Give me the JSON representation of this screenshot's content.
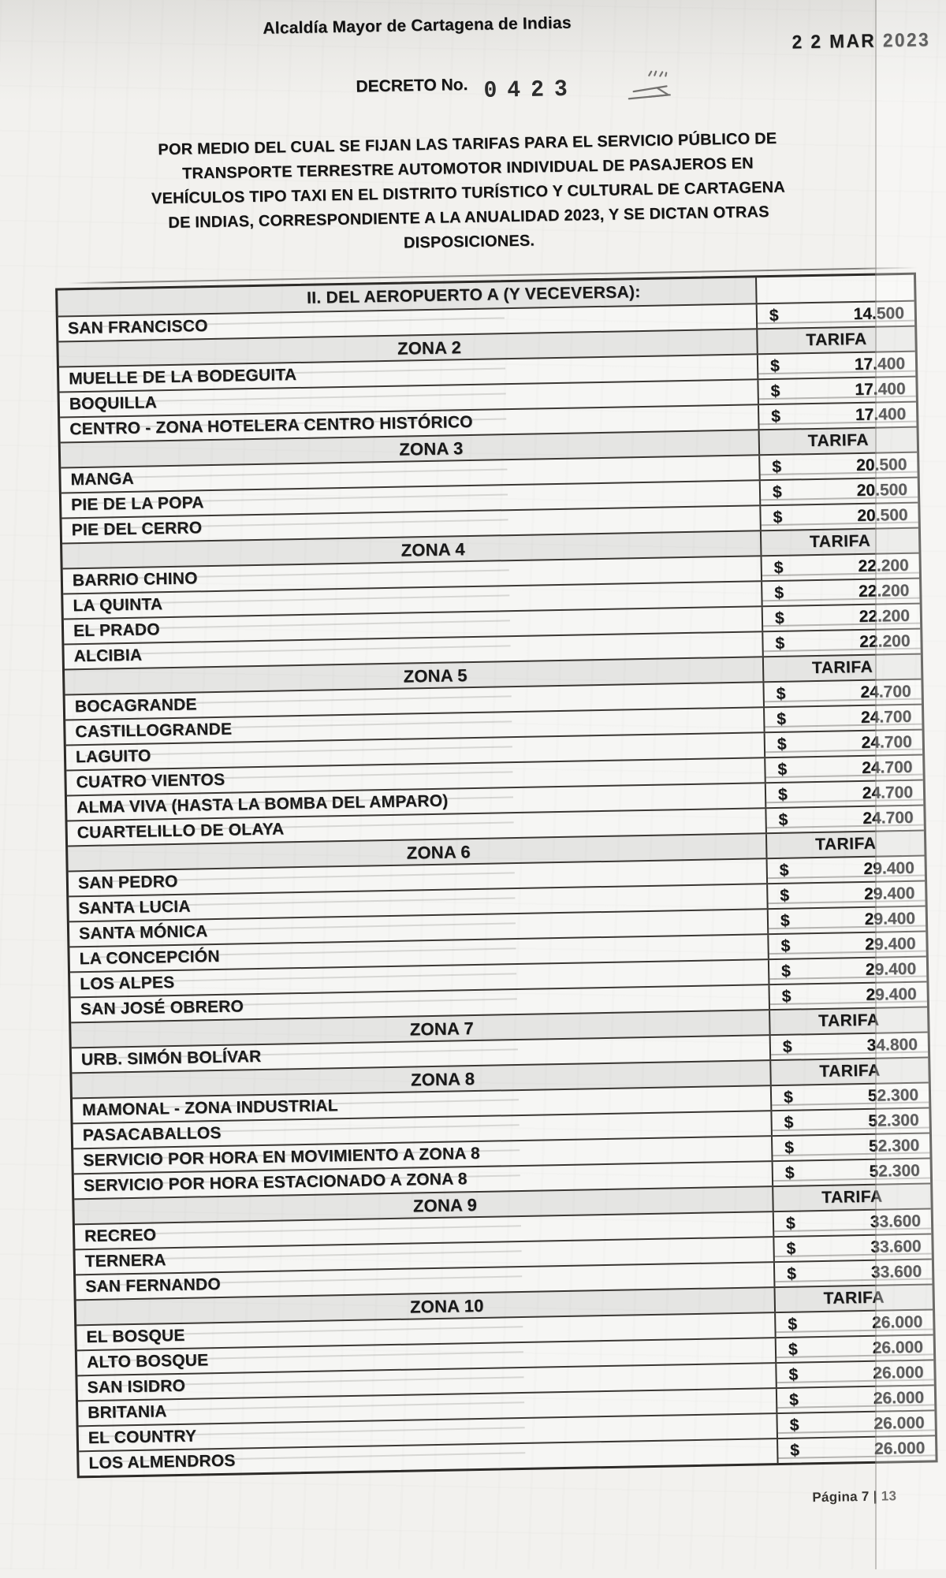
{
  "page": {
    "org_name": "Alcaldía Mayor de Cartagena de Indias",
    "date_stamp": "2 2 MAR 2023",
    "decree_label": "DECRETO No.",
    "decree_number": "0423",
    "title_lines": [
      "POR MEDIO DEL CUAL SE FIJAN LAS TARIFAS PARA EL SERVICIO PÚBLICO DE",
      "TRANSPORTE TERRESTRE AUTOMOTOR INDIVIDUAL DE PASAJEROS EN",
      "VEHÍCULOS TIPO TAXI EN EL DISTRITO TURÍSTICO Y CULTURAL DE CARTAGENA",
      "DE INDIAS, CORRESPONDIENTE A LA ANUALIDAD 2023, Y SE DICTAN OTRAS",
      "DISPOSICIONES."
    ],
    "footer": "Página 7 | 13"
  },
  "table": {
    "section_header": "II. DEL AEROPUERTO A (Y VECEVERSA):",
    "tariff_header": "TARIFA",
    "currency": "$",
    "rows": [
      {
        "t": "header",
        "label": "II. DEL AEROPUERTO A (Y VECEVERSA):"
      },
      {
        "t": "dest",
        "label": "SAN FRANCISCO",
        "fare": "14.500"
      },
      {
        "t": "zone",
        "label": "ZONA 2"
      },
      {
        "t": "dest",
        "label": "MUELLE DE LA BODEGUITA",
        "fare": "17.400"
      },
      {
        "t": "dest",
        "label": "BOQUILLA",
        "fare": "17.400"
      },
      {
        "t": "dest",
        "label": "CENTRO - ZONA HOTELERA CENTRO HISTÓRICO",
        "fare": "17.400"
      },
      {
        "t": "zone",
        "label": "ZONA 3"
      },
      {
        "t": "dest",
        "label": "MANGA",
        "fare": "20.500"
      },
      {
        "t": "dest",
        "label": "PIE DE LA POPA",
        "fare": "20.500"
      },
      {
        "t": "dest",
        "label": "PIE DEL CERRO",
        "fare": "20.500"
      },
      {
        "t": "zone",
        "label": "ZONA 4"
      },
      {
        "t": "dest",
        "label": "BARRIO CHINO",
        "fare": "22.200"
      },
      {
        "t": "dest",
        "label": "LA QUINTA",
        "fare": "22.200"
      },
      {
        "t": "dest",
        "label": "EL PRADO",
        "fare": "22.200"
      },
      {
        "t": "dest",
        "label": "ALCIBIA",
        "fare": "22.200"
      },
      {
        "t": "zone",
        "label": "ZONA 5"
      },
      {
        "t": "dest",
        "label": "BOCAGRANDE",
        "fare": "24.700"
      },
      {
        "t": "dest",
        "label": "CASTILLOGRANDE",
        "fare": "24.700"
      },
      {
        "t": "dest",
        "label": "LAGUITO",
        "fare": "24.700"
      },
      {
        "t": "dest",
        "label": "CUATRO VIENTOS",
        "fare": "24.700"
      },
      {
        "t": "dest",
        "label": "ALMA VIVA (HASTA LA BOMBA DEL AMPARO)",
        "fare": "24.700"
      },
      {
        "t": "dest",
        "label": "CUARTELILLO DE OLAYA",
        "fare": "24.700"
      },
      {
        "t": "zone",
        "label": "ZONA 6"
      },
      {
        "t": "dest",
        "label": "SAN PEDRO",
        "fare": "29.400"
      },
      {
        "t": "dest",
        "label": "SANTA LUCIA",
        "fare": "29.400"
      },
      {
        "t": "dest",
        "label": "SANTA MÓNICA",
        "fare": "29.400"
      },
      {
        "t": "dest",
        "label": "LA CONCEPCIÓN",
        "fare": "29.400"
      },
      {
        "t": "dest",
        "label": "LOS ALPES",
        "fare": "29.400"
      },
      {
        "t": "dest",
        "label": "SAN JOSÉ OBRERO",
        "fare": "29.400"
      },
      {
        "t": "zone",
        "label": "ZONA 7"
      },
      {
        "t": "dest",
        "label": "URB. SIMÓN BOLÍVAR",
        "fare": "34.800"
      },
      {
        "t": "zone",
        "label": "ZONA 8"
      },
      {
        "t": "dest",
        "label": "MAMONAL - ZONA INDUSTRIAL",
        "fare": "52.300"
      },
      {
        "t": "dest",
        "label": "PASACABALLOS",
        "fare": "52.300"
      },
      {
        "t": "dest",
        "label": "SERVICIO POR HORA EN MOVIMIENTO A ZONA 8",
        "fare": "52.300"
      },
      {
        "t": "dest",
        "label": "SERVICIO POR HORA ESTACIONADO A ZONA 8",
        "fare": "52.300"
      },
      {
        "t": "zone",
        "label": "ZONA 9"
      },
      {
        "t": "dest",
        "label": "RECREO",
        "fare": "33.600"
      },
      {
        "t": "dest",
        "label": "TERNERA",
        "fare": "33.600"
      },
      {
        "t": "dest",
        "label": "SAN FERNANDO",
        "fare": "33.600"
      },
      {
        "t": "zone",
        "label": "ZONA 10"
      },
      {
        "t": "dest",
        "label": "EL BOSQUE",
        "fare": "26.000"
      },
      {
        "t": "dest",
        "label": "ALTO BOSQUE",
        "fare": "26.000"
      },
      {
        "t": "dest",
        "label": "SAN ISIDRO",
        "fare": "26.000"
      },
      {
        "t": "dest",
        "label": "BRITANIA",
        "fare": "26.000"
      },
      {
        "t": "dest",
        "label": "EL COUNTRY",
        "fare": "26.000"
      },
      {
        "t": "dest",
        "label": "LOS ALMENDROS",
        "fare": "26.000"
      }
    ]
  }
}
